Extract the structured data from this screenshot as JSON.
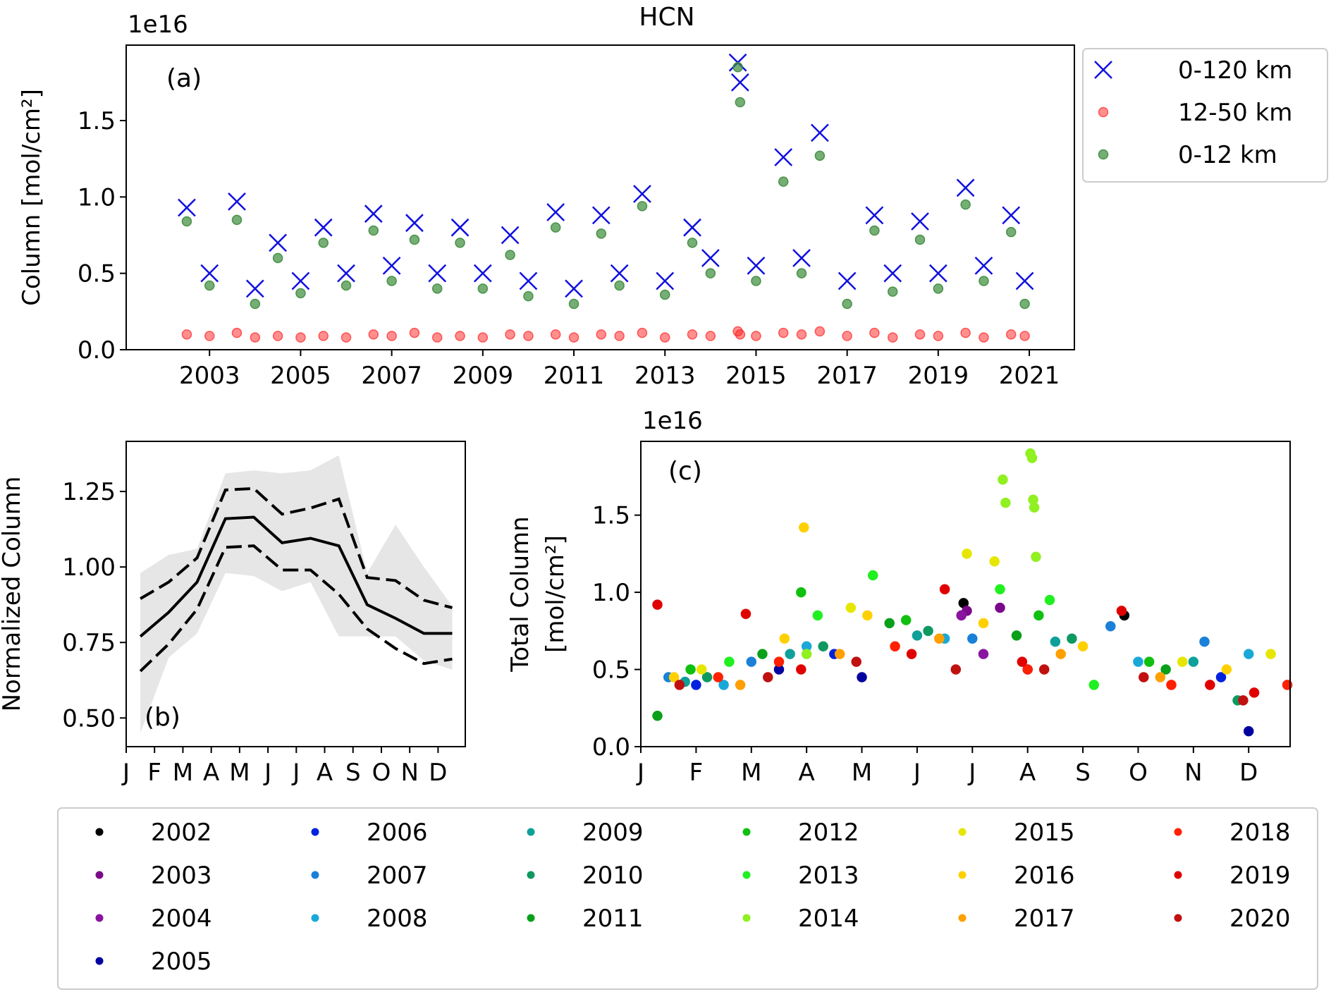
{
  "figure_title": "HCN",
  "chart_data": [
    {
      "type": "scatter",
      "annotation": "(a)",
      "offset_label": "1e16",
      "ylabel": "Column [mol/cm²]",
      "xlim": [
        2001.17,
        2021.99
      ],
      "xticks": [
        2003,
        2005,
        2007,
        2009,
        2011,
        2013,
        2015,
        2017,
        2019,
        2021
      ],
      "ylim": [
        0,
        1.994
      ],
      "yticks": [
        {
          "value": 0,
          "label": "0.0"
        },
        0.5,
        {
          "value": 1,
          "label": "1.0"
        },
        1.5
      ],
      "legend": "right",
      "x": [
        2002.5,
        2003.0,
        2003.6,
        2004.0,
        2004.5,
        2005.0,
        2005.5,
        2006.0,
        2006.6,
        2007.0,
        2007.5,
        2008.0,
        2008.5,
        2009.0,
        2009.6,
        2010.0,
        2010.6,
        2011.0,
        2011.6,
        2012.0,
        2012.5,
        2013.0,
        2013.6,
        2014.0,
        2014.6,
        2014.65,
        2015.0,
        2015.6,
        2016.0,
        2016.4,
        2017.0,
        2017.6,
        2018.0,
        2018.6,
        2019.0,
        2019.6,
        2020.0,
        2020.6,
        2020.9
      ],
      "series": [
        {
          "name": "0-120 km",
          "color": "#1010e0",
          "marker": "x",
          "values": [
            0.93,
            0.5,
            0.97,
            0.4,
            0.7,
            0.45,
            0.8,
            0.5,
            0.89,
            0.55,
            0.83,
            0.5,
            0.8,
            0.5,
            0.75,
            0.45,
            0.9,
            0.4,
            0.88,
            0.5,
            1.02,
            0.45,
            0.8,
            0.6,
            1.88,
            1.75,
            0.55,
            1.26,
            0.6,
            1.42,
            0.45,
            0.88,
            0.5,
            0.84,
            0.5,
            1.06,
            0.55,
            0.88,
            0.45
          ]
        },
        {
          "name": "12-50 km",
          "color": "#ff2020",
          "marker": "o",
          "alpha": 0.5,
          "values": [
            0.1,
            0.09,
            0.11,
            0.08,
            0.09,
            0.08,
            0.09,
            0.08,
            0.1,
            0.09,
            0.11,
            0.08,
            0.09,
            0.08,
            0.1,
            0.09,
            0.1,
            0.08,
            0.1,
            0.09,
            0.11,
            0.08,
            0.1,
            0.09,
            0.12,
            0.1,
            0.09,
            0.11,
            0.1,
            0.12,
            0.09,
            0.11,
            0.08,
            0.1,
            0.09,
            0.11,
            0.08,
            0.1,
            0.09
          ]
        },
        {
          "name": "0-12 km",
          "color": "#3c8c3c",
          "marker": "o",
          "alpha": 0.7,
          "values": [
            0.84,
            0.42,
            0.85,
            0.3,
            0.6,
            0.37,
            0.7,
            0.42,
            0.78,
            0.45,
            0.72,
            0.4,
            0.7,
            0.4,
            0.62,
            0.35,
            0.8,
            0.3,
            0.76,
            0.42,
            0.94,
            0.36,
            0.7,
            0.5,
            1.85,
            1.62,
            0.45,
            1.1,
            0.5,
            1.27,
            0.3,
            0.78,
            0.38,
            0.72,
            0.4,
            0.95,
            0.45,
            0.77,
            0.3
          ]
        }
      ]
    },
    {
      "type": "line",
      "annotation": "(b)",
      "ylabel": "Normalized Column",
      "xlim": [
        0,
        11.96
      ],
      "xticks": [
        {
          "value": 0,
          "label": "J"
        },
        {
          "value": 1,
          "label": "F"
        },
        {
          "value": 2,
          "label": "M"
        },
        {
          "value": 3,
          "label": "A"
        },
        {
          "value": 4,
          "label": "M"
        },
        {
          "value": 5,
          "label": "J"
        },
        {
          "value": 6,
          "label": "J"
        },
        {
          "value": 7,
          "label": "A"
        },
        {
          "value": 8,
          "label": "S"
        },
        {
          "value": 9,
          "label": "O"
        },
        {
          "value": 10,
          "label": "N"
        },
        {
          "value": 11,
          "label": "D"
        }
      ],
      "ylim": [
        0.405,
        1.416
      ],
      "yticks": [
        {
          "value": 0.5,
          "label": "0.50"
        },
        0.75,
        {
          "value": 1,
          "label": "1.00"
        },
        1.25
      ],
      "x": [
        0.5,
        1.5,
        2.5,
        3.5,
        4.5,
        5.5,
        6.5,
        7.5,
        8.5,
        9.5,
        10.5,
        11.5
      ],
      "band": {
        "color": "#e6e6e6",
        "upper": [
          0.98,
          1.04,
          1.06,
          1.31,
          1.32,
          1.31,
          1.32,
          1.37,
          0.98,
          1.14,
          1.0,
          0.87
        ],
        "lower": [
          0.45,
          0.7,
          0.78,
          0.98,
          0.97,
          0.92,
          0.95,
          0.77,
          0.77,
          0.77,
          0.69,
          0.66
        ]
      },
      "series": [
        {
          "color": "#000000",
          "style": "solid",
          "values": [
            0.77,
            0.85,
            0.95,
            1.16,
            1.165,
            1.08,
            1.095,
            1.07,
            0.875,
            0.83,
            0.78,
            0.78
          ]
        },
        {
          "color": "#000000",
          "style": "dashed",
          "values": [
            0.895,
            0.95,
            1.03,
            1.255,
            1.26,
            1.175,
            1.195,
            1.225,
            0.965,
            0.955,
            0.89,
            0.865
          ]
        },
        {
          "color": "#000000",
          "style": "dashed",
          "values": [
            0.655,
            0.745,
            0.86,
            1.065,
            1.07,
            0.99,
            0.99,
            0.91,
            0.795,
            0.73,
            0.68,
            0.695
          ]
        }
      ]
    },
    {
      "type": "scatter",
      "annotation": "(c)",
      "offset_label": "1e16",
      "ylabel": [
        "Total Column",
        "[mol/cm²]"
      ],
      "xlim": [
        0,
        11.75
      ],
      "xticks": [
        {
          "value": 0,
          "label": "J"
        },
        {
          "value": 1,
          "label": "F"
        },
        {
          "value": 2,
          "label": "M"
        },
        {
          "value": 3,
          "label": "A"
        },
        {
          "value": 4,
          "label": "M"
        },
        {
          "value": 5,
          "label": "J"
        },
        {
          "value": 6,
          "label": "J"
        },
        {
          "value": 7,
          "label": "A"
        },
        {
          "value": 8,
          "label": "S"
        },
        {
          "value": 9,
          "label": "O"
        },
        {
          "value": 10,
          "label": "N"
        },
        {
          "value": 11,
          "label": "D"
        }
      ],
      "ylim": [
        0,
        1.978
      ],
      "yticks": [
        {
          "value": 0,
          "label": "0.0"
        },
        0.5,
        {
          "value": 1,
          "label": "1.0"
        },
        1.5
      ],
      "legend": "below",
      "legend_ncol": 6,
      "series": [
        {
          "name": "2002",
          "color": "#000000",
          "marker": "o",
          "x": [
            5.84,
            8.75
          ],
          "values": [
            0.93,
            0.85
          ]
        },
        {
          "name": "2003",
          "color": "#7b0a8a",
          "marker": "o",
          "x": [
            5.9,
            6.5
          ],
          "values": [
            0.88,
            0.9
          ]
        },
        {
          "name": "2004",
          "color": "#8a14a0",
          "marker": "o",
          "x": [
            5.8,
            6.2
          ],
          "values": [
            0.85,
            0.6
          ]
        },
        {
          "name": "2005",
          "color": "#0000a0",
          "marker": "o",
          "x": [
            2.5,
            4.0,
            11.0
          ],
          "values": [
            0.5,
            0.45,
            0.1
          ]
        },
        {
          "name": "2006",
          "color": "#0022dd",
          "marker": "o",
          "x": [
            1.0,
            3.5,
            7.0,
            10.5
          ],
          "values": [
            0.4,
            0.6,
            0.5,
            0.45
          ]
        },
        {
          "name": "2007",
          "color": "#1a80d8",
          "marker": "o",
          "x": [
            0.5,
            2.0,
            6.0,
            8.5,
            10.2
          ],
          "values": [
            0.45,
            0.55,
            0.7,
            0.78,
            0.68
          ]
        },
        {
          "name": "2008",
          "color": "#1aa8d8",
          "marker": "o",
          "x": [
            1.5,
            3.0,
            5.5,
            9.0,
            11.0
          ],
          "values": [
            0.4,
            0.65,
            0.7,
            0.55,
            0.6
          ]
        },
        {
          "name": "2009",
          "color": "#0fa09a",
          "marker": "o",
          "x": [
            0.8,
            2.7,
            5.0,
            7.5,
            10.0
          ],
          "values": [
            0.42,
            0.6,
            0.72,
            0.68,
            0.55
          ]
        },
        {
          "name": "2010",
          "color": "#0f9960",
          "marker": "o",
          "x": [
            1.2,
            3.3,
            5.2,
            7.8,
            10.8
          ],
          "values": [
            0.45,
            0.65,
            0.75,
            0.7,
            0.3
          ]
        },
        {
          "name": "2011",
          "color": "#0aa01a",
          "marker": "o",
          "x": [
            0.3,
            2.2,
            4.5,
            6.8,
            9.5
          ],
          "values": [
            0.2,
            0.6,
            0.8,
            0.72,
            0.5
          ]
        },
        {
          "name": "2012",
          "color": "#10c010",
          "marker": "o",
          "x": [
            0.9,
            2.9,
            4.8,
            7.2,
            9.2
          ],
          "values": [
            0.5,
            1.0,
            0.82,
            0.85,
            0.55
          ]
        },
        {
          "name": "2013",
          "color": "#20f020",
          "marker": "o",
          "x": [
            1.6,
            3.2,
            4.2,
            6.5,
            7.4,
            8.2
          ],
          "values": [
            0.55,
            0.85,
            1.11,
            1.02,
            0.95,
            0.4
          ]
        },
        {
          "name": "2014",
          "color": "#90f020",
          "marker": "o",
          "x": [
            6.55,
            6.6,
            7.05,
            7.08,
            7.1,
            7.12,
            7.15,
            3.0
          ],
          "values": [
            1.73,
            1.58,
            1.9,
            1.87,
            1.6,
            1.55,
            1.23,
            0.6
          ]
        },
        {
          "name": "2015",
          "color": "#e6e600",
          "marker": "o",
          "x": [
            1.1,
            3.8,
            5.9,
            6.4,
            9.8,
            11.4
          ],
          "values": [
            0.5,
            0.9,
            1.25,
            1.2,
            0.55,
            0.6
          ]
        },
        {
          "name": "2016",
          "color": "#ffd000",
          "marker": "o",
          "x": [
            0.6,
            2.6,
            2.95,
            4.1,
            6.2,
            8.0,
            10.6
          ],
          "values": [
            0.45,
            0.7,
            1.42,
            0.85,
            0.8,
            0.65,
            0.5
          ]
        },
        {
          "name": "2017",
          "color": "#ff9f00",
          "marker": "o",
          "x": [
            1.8,
            3.6,
            5.4,
            7.6,
            9.4
          ],
          "values": [
            0.4,
            0.6,
            0.7,
            0.6,
            0.45
          ]
        },
        {
          "name": "2018",
          "color": "#ff2000",
          "marker": "o",
          "x": [
            1.4,
            2.5,
            4.6,
            7.0,
            9.6,
            11.7
          ],
          "values": [
            0.45,
            0.55,
            0.65,
            0.5,
            0.4,
            0.4
          ]
        },
        {
          "name": "2019",
          "color": "#e00000",
          "marker": "o",
          "x": [
            0.3,
            1.9,
            2.9,
            4.9,
            5.5,
            6.9,
            8.7,
            10.3,
            11.1
          ],
          "values": [
            0.92,
            0.86,
            0.5,
            0.6,
            1.02,
            0.55,
            0.88,
            0.4,
            0.35
          ]
        },
        {
          "name": "2020",
          "color": "#c01010",
          "marker": "o",
          "x": [
            0.7,
            2.3,
            3.9,
            5.7,
            7.3,
            9.1,
            10.9
          ],
          "values": [
            0.4,
            0.45,
            0.55,
            0.5,
            0.5,
            0.45,
            0.3
          ]
        }
      ]
    }
  ]
}
